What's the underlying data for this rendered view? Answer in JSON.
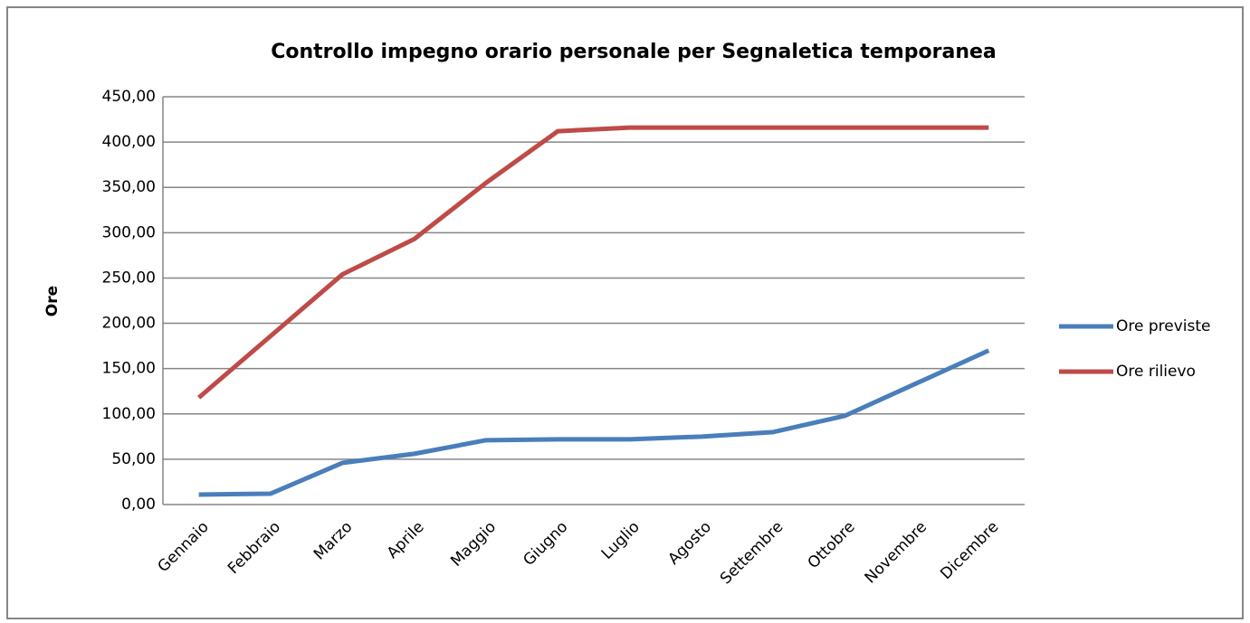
{
  "chart_data": {
    "type": "line",
    "title": "Controllo impegno orario personale per Segnaletica temporanea",
    "y_label": "Ore",
    "categories": [
      "Gennaio",
      "Febbraio",
      "Marzo",
      "Aprile",
      "Maggio",
      "Giugno",
      "Luglio",
      "Agosto",
      "Settembre",
      "Ottobre",
      "Novembre",
      "Dicembre"
    ],
    "series": [
      {
        "name": "Ore previste",
        "color": "#4a7ebb",
        "values": [
          11,
          12,
          46,
          56,
          71,
          72,
          72,
          75,
          80,
          98,
          134,
          170
        ]
      },
      {
        "name": "Ore rilievo",
        "color": "#be4b48",
        "values": [
          118,
          186,
          254,
          293,
          355,
          412,
          416,
          416,
          416,
          416,
          416,
          416
        ]
      }
    ],
    "ylim": [
      0,
      450
    ],
    "yticks": [
      {
        "value": 0,
        "label": "0,00"
      },
      {
        "value": 50,
        "label": "50,00"
      },
      {
        "value": 100,
        "label": "100,00"
      },
      {
        "value": 150,
        "label": "150,00"
      },
      {
        "value": 200,
        "label": "200,00"
      },
      {
        "value": 250,
        "label": "250,00"
      },
      {
        "value": 300,
        "label": "300,00"
      },
      {
        "value": 350,
        "label": "350,00"
      },
      {
        "value": 400,
        "label": "400,00"
      },
      {
        "value": 450,
        "label": "450,00"
      }
    ],
    "grid": true,
    "legend": "right"
  }
}
